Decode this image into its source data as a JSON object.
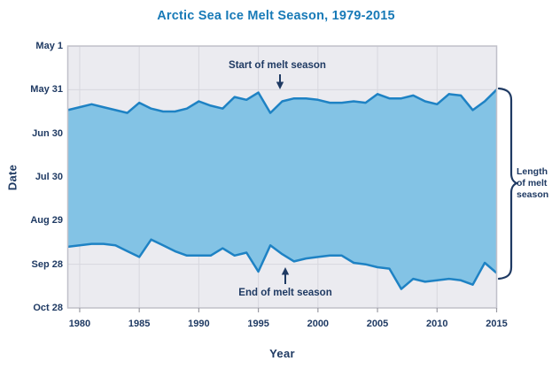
{
  "title": "Arctic Sea Ice Melt Season, 1979-2015",
  "axes": {
    "y_label": "Date",
    "x_label": "Year"
  },
  "annotations": {
    "start_label": "Start of melt season",
    "end_label": "End of melt season",
    "brace_label": "Length of melt season",
    "brace_lines": [
      "Length",
      "of melt",
      "season"
    ]
  },
  "colors": {
    "title_blue": "#187ab7",
    "text_navy": "#1f3a63",
    "line_blue": "#1e82c4",
    "band_fill": "#83c3e5",
    "plot_bg": "#ebebf0",
    "gridline": "#d7d7de",
    "spine": "#c0c0c9",
    "tick": "#9a9aa2"
  },
  "chart_data": {
    "type": "area",
    "title": "Arctic Sea Ice Melt Season, 1979-2015",
    "xlabel": "Year",
    "ylabel": "Date",
    "x_range": [
      1979,
      2015
    ],
    "y_range_day_of_year": [
      121,
      301
    ],
    "y_axis_inverted_dates": true,
    "grid": true,
    "years": [
      1979,
      1980,
      1981,
      1982,
      1983,
      1984,
      1985,
      1986,
      1987,
      1988,
      1989,
      1990,
      1991,
      1992,
      1993,
      1994,
      1995,
      1996,
      1997,
      1998,
      1999,
      2000,
      2001,
      2002,
      2003,
      2004,
      2005,
      2006,
      2007,
      2008,
      2009,
      2010,
      2011,
      2012,
      2013,
      2014,
      2015
    ],
    "series": [
      {
        "name": "Start of melt season",
        "day_of_year": [
          165,
          163,
          161,
          163,
          165,
          167,
          160,
          164,
          166,
          166,
          164,
          159,
          162,
          164,
          156,
          158,
          153,
          167,
          159,
          157,
          157,
          158,
          160,
          160,
          159,
          160,
          154,
          157,
          157,
          155,
          159,
          161,
          154,
          155,
          165,
          159,
          151
        ]
      },
      {
        "name": "End of melt season",
        "day_of_year": [
          259,
          258,
          257,
          257,
          258,
          262,
          266,
          254,
          258,
          262,
          265,
          265,
          265,
          260,
          265,
          263,
          276,
          258,
          264,
          269,
          267,
          266,
          265,
          265,
          270,
          271,
          273,
          274,
          288,
          281,
          283,
          282,
          281,
          282,
          285,
          270,
          277
        ]
      }
    ],
    "y_ticks": [
      {
        "label": "May 1",
        "day_of_year": 121
      },
      {
        "label": "May 31",
        "day_of_year": 151
      },
      {
        "label": "Jun 30",
        "day_of_year": 181
      },
      {
        "label": "Jul 30",
        "day_of_year": 211
      },
      {
        "label": "Aug 29",
        "day_of_year": 241
      },
      {
        "label": "Sep 28",
        "day_of_year": 271
      },
      {
        "label": "Oct 28",
        "day_of_year": 301
      }
    ],
    "x_ticks": [
      1980,
      1985,
      1990,
      1995,
      2000,
      2005,
      2010,
      2015
    ],
    "legend_position": "none"
  }
}
